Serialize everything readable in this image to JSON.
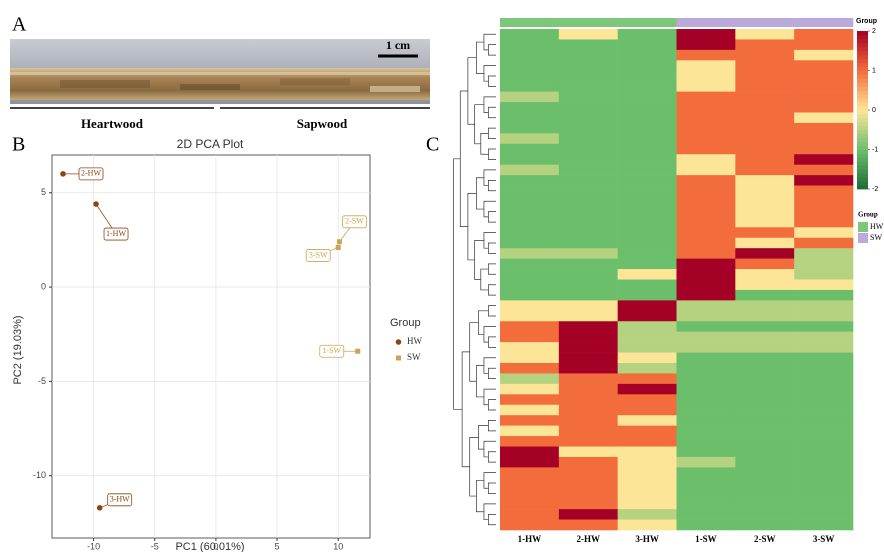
{
  "figure": {
    "panel_labels": [
      "A",
      "B",
      "C"
    ],
    "scale_bar": "1 cm",
    "regions": [
      "Heartwood",
      "Sapwood"
    ]
  },
  "chart_data": [
    {
      "type": "scatter",
      "title": "2D PCA Plot",
      "x_label": "PC1 (60.01%)",
      "y_label": "PC2 (19.03%)",
      "xlim": [
        -13.4,
        12.6
      ],
      "ylim": [
        -13.3,
        7.0
      ],
      "xticks": [
        -10,
        -5,
        0,
        5,
        10
      ],
      "yticks": [
        -10,
        -5,
        0,
        5
      ],
      "grid": true,
      "legend": "right",
      "legend_title": "Group",
      "series": [
        {
          "name": "HW",
          "color": "#8b4513",
          "marker": "circle",
          "point_labels": [
            "2-HW",
            "1-HW",
            "3-HW"
          ],
          "x": [
            -12.5,
            -9.8,
            -9.5
          ],
          "values": [
            6.0,
            4.4,
            -11.7
          ]
        },
        {
          "name": "SW",
          "color": "#c9a456",
          "marker": "square",
          "point_labels": [
            "2-SW",
            "3-SW",
            "1-SW"
          ],
          "x": [
            10.1,
            10.0,
            11.6
          ],
          "values": [
            2.4,
            2.1,
            -3.4
          ]
        }
      ]
    },
    {
      "type": "heatmap",
      "categories": [
        "1-HW",
        "2-HW",
        "3-HW",
        "1-SW",
        "2-SW",
        "3-SW"
      ],
      "annotation_label": "Group",
      "column_groups": [
        "HW",
        "HW",
        "HW",
        "SW",
        "SW",
        "SW"
      ],
      "legend_title": "Group",
      "group_names": [
        "HW",
        "SW"
      ],
      "group_colors": [
        "#7cc77a",
        "#bba9d9"
      ],
      "zlim": [
        -2,
        2
      ],
      "zticks": [
        -2,
        -1,
        0,
        1,
        2
      ],
      "colors": [
        "#1b6b38",
        "#6cbf6a",
        "#fde598",
        "#f36c3c",
        "#a50026"
      ],
      "values": [
        [
          -1,
          0,
          -1,
          2,
          0,
          1
        ],
        [
          -1,
          -1,
          -1,
          2,
          1,
          1
        ],
        [
          -1,
          -1,
          -1,
          1,
          1,
          0
        ],
        [
          -1,
          -1,
          -1,
          0,
          1,
          1
        ],
        [
          -1,
          -1,
          -1,
          0,
          1,
          1
        ],
        [
          -1,
          -1,
          -1,
          0,
          1,
          1
        ],
        [
          -0.5,
          -1,
          -1,
          1,
          1,
          1
        ],
        [
          -1,
          -1,
          -1,
          1,
          1,
          1
        ],
        [
          -1,
          -1,
          -1,
          1,
          1,
          0
        ],
        [
          -1,
          -1,
          -1,
          1,
          1,
          1
        ],
        [
          -0.5,
          -1,
          -1,
          1,
          1,
          1
        ],
        [
          -1,
          -1,
          -1,
          1,
          1,
          1
        ],
        [
          -1,
          -1,
          -1,
          0,
          1,
          2
        ],
        [
          -0.5,
          -1,
          -1,
          0,
          1,
          1
        ],
        [
          -1,
          -1,
          -1,
          1,
          0,
          2
        ],
        [
          -1,
          -1,
          -1,
          1,
          0,
          1
        ],
        [
          -1,
          -1,
          -1,
          1,
          0,
          1
        ],
        [
          -1,
          -1,
          -1,
          1,
          0,
          1
        ],
        [
          -1,
          -1,
          -1,
          1,
          0,
          1
        ],
        [
          -1,
          -1,
          -1,
          1,
          1,
          0
        ],
        [
          -1,
          -1,
          -1,
          1,
          0,
          1
        ],
        [
          -0.5,
          -0.5,
          -1,
          1,
          2,
          -0.5
        ],
        [
          -1,
          -1,
          -1,
          2,
          1,
          -0.5
        ],
        [
          -1,
          -1,
          0,
          2,
          0,
          -0.5
        ],
        [
          -1,
          -1,
          -1,
          2,
          0,
          0
        ],
        [
          -1,
          -1,
          -1,
          2,
          -1,
          -1
        ],
        [
          0,
          0,
          2,
          -0.5,
          -0.5,
          -0.5
        ],
        [
          0,
          0,
          2,
          -0.5,
          -0.5,
          -0.5
        ],
        [
          1,
          2,
          -0.5,
          -1,
          -1,
          -1
        ],
        [
          1,
          2,
          -0.5,
          -0.5,
          -0.5,
          -0.5
        ],
        [
          0,
          2,
          -0.5,
          -0.5,
          -0.5,
          -0.5
        ],
        [
          0,
          2,
          0,
          -1,
          -1,
          -1
        ],
        [
          1,
          2,
          -0.5,
          -1,
          -1,
          -1
        ],
        [
          -0.5,
          1,
          1,
          -1,
          -1,
          -1
        ],
        [
          0,
          1,
          2,
          -1,
          -1,
          -1
        ],
        [
          1,
          1,
          1,
          -1,
          -1,
          -1
        ],
        [
          0,
          1,
          1,
          -1,
          -1,
          -1
        ],
        [
          1,
          1,
          0,
          -1,
          -1,
          -1
        ],
        [
          0,
          1,
          1,
          -1,
          -1,
          -1
        ],
        [
          1,
          1,
          1,
          -1,
          -1,
          -1
        ],
        [
          2,
          0,
          0,
          -1,
          -1,
          -1
        ],
        [
          2,
          1,
          0,
          -0.5,
          -1,
          -1
        ],
        [
          1,
          1,
          0,
          -1,
          -1,
          -1
        ],
        [
          1,
          1,
          0,
          -1,
          -1,
          -1
        ],
        [
          1,
          1,
          0,
          -1,
          -1,
          -1
        ],
        [
          1,
          1,
          0,
          -1,
          -1,
          -1
        ],
        [
          1,
          2,
          -0.5,
          -1,
          -1,
          -1
        ],
        [
          1,
          1,
          0,
          -1,
          -1,
          -1
        ]
      ]
    }
  ]
}
